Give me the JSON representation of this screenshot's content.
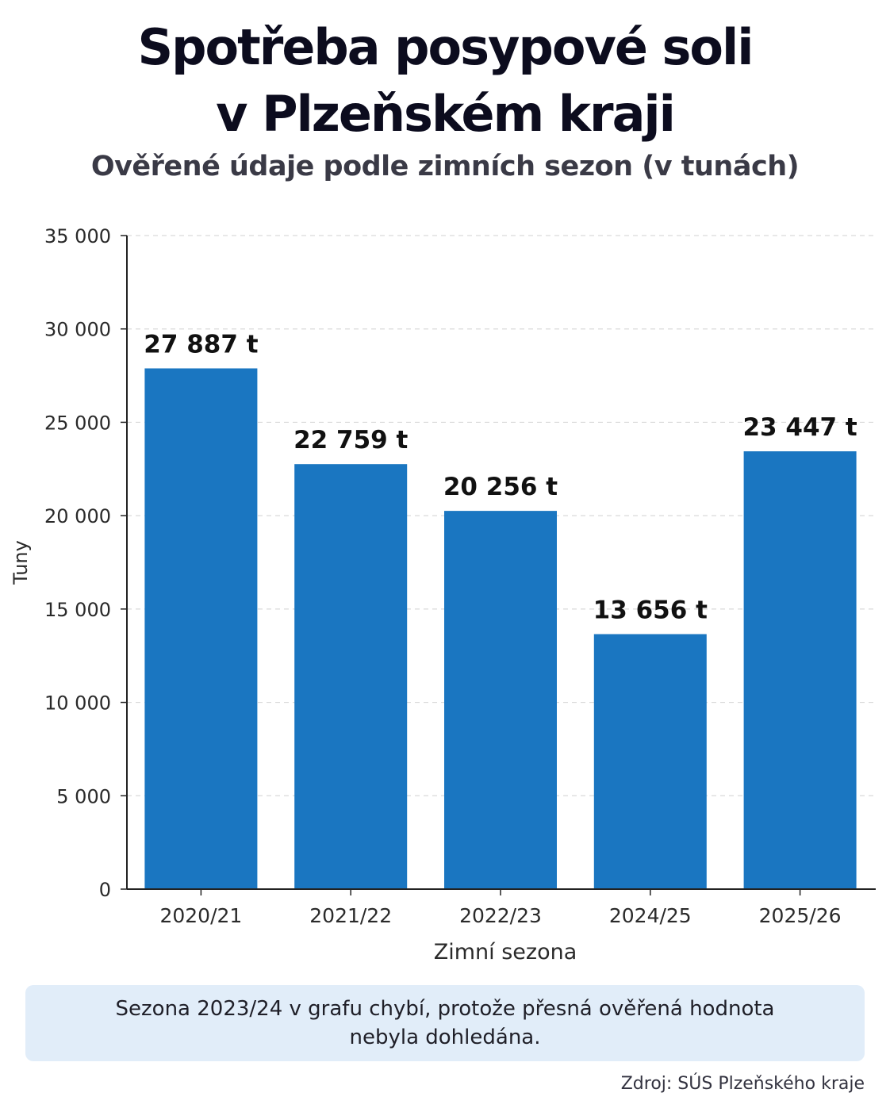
{
  "title_line1": "Spotřeba posypové soli",
  "title_line2": "v Plzeňském kraji",
  "subtitle": "Ověřené údaje podle zimních sezon (v tunách)",
  "note": "Sezona 2023/24 v grafu chybí, protože přesná ověřená hodnota nebyla dohledána.",
  "source": "Zdroj: SÚS Plzeňského kraje",
  "colors": {
    "bar": "#1a76c1",
    "axis": "#222222",
    "grid": "#d9d9d9",
    "note_bg": "#e1edf9"
  },
  "chart_data": {
    "type": "bar",
    "categories": [
      "2020/21",
      "2021/22",
      "2022/23",
      "2024/25",
      "2025/26"
    ],
    "values": [
      27887,
      22759,
      20256,
      13656,
      23447
    ],
    "data_labels": [
      "27 887 t",
      "22 759 t",
      "20 256 t",
      "13 656 t",
      "23 447 t"
    ],
    "xlabel": "Zimní sezona",
    "ylabel": "Tuny",
    "ylim": [
      0,
      35000
    ],
    "yticks": [
      0,
      5000,
      10000,
      15000,
      20000,
      25000,
      30000,
      35000
    ],
    "ytick_labels": [
      "0",
      "5 000",
      "10 000",
      "15 000",
      "20 000",
      "25 000",
      "30 000",
      "35 000"
    ],
    "grid": true
  }
}
